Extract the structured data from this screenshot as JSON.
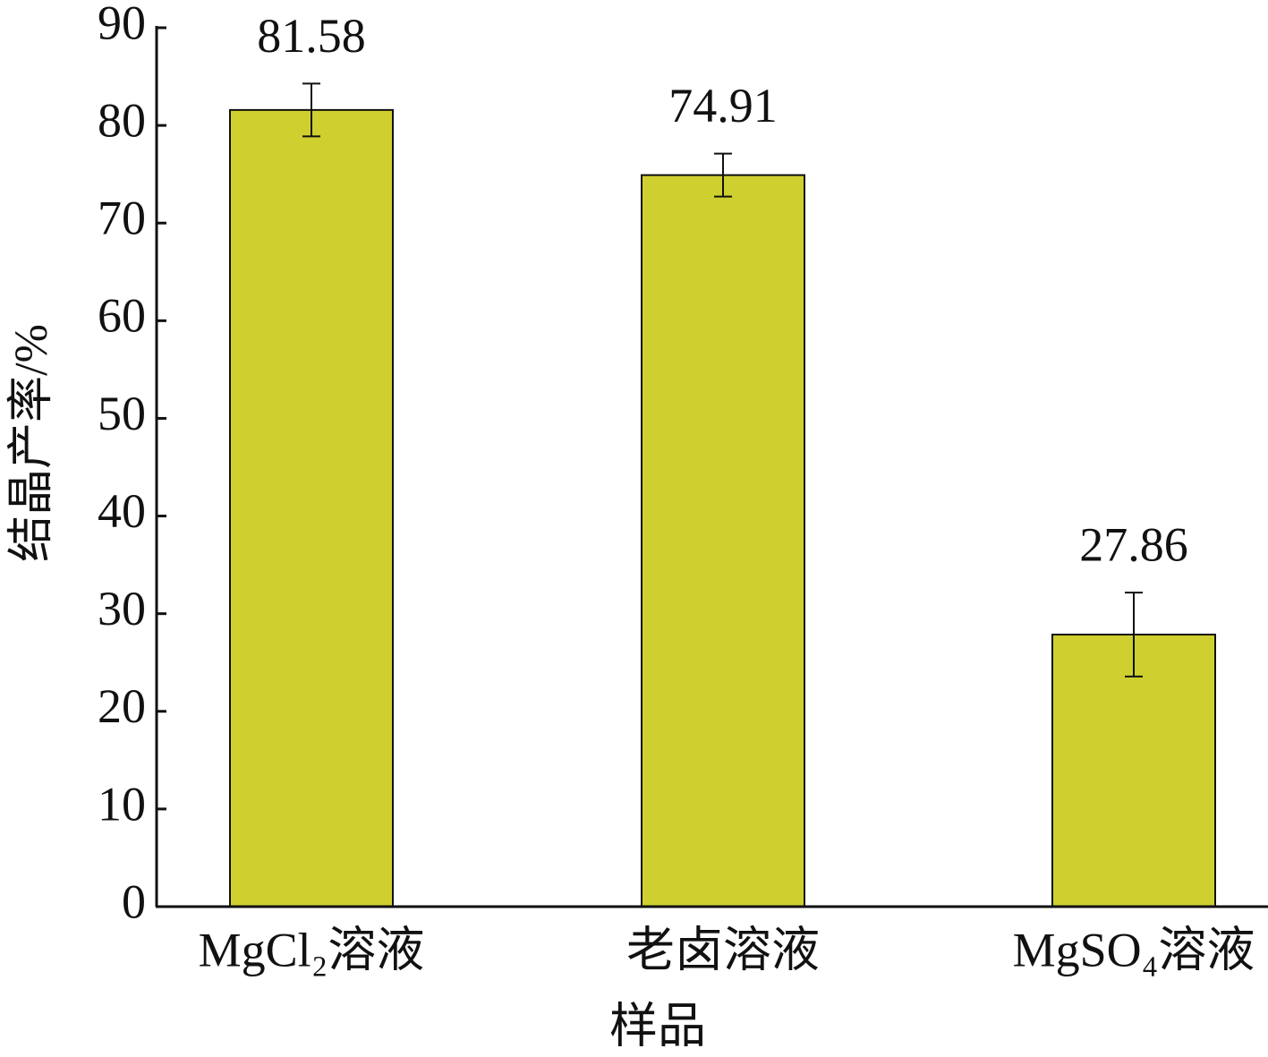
{
  "chart_data": {
    "type": "bar",
    "xlabel": "样品",
    "ylabel": "结晶产率/%",
    "categories": [
      "MgCl₂溶液",
      "老卤溶液",
      "MgSO₄溶液"
    ],
    "values": [
      81.58,
      74.91,
      27.86
    ],
    "errors": [
      2.7,
      2.2,
      4.3
    ],
    "color": "#cfd02f",
    "ylim": [
      0,
      90
    ],
    "yticks": [
      0,
      10,
      20,
      30,
      40,
      50,
      60,
      70,
      80,
      90
    ],
    "grid": false
  }
}
